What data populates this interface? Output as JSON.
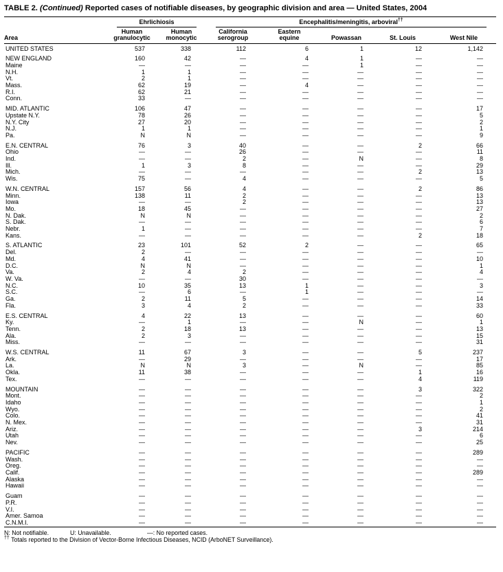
{
  "page": {
    "title_prefix": "TABLE 2.",
    "title_continued": "(Continued)",
    "title_rest": "Reported cases of notifiable diseases, by geographic division and area — United States, 2004"
  },
  "table": {
    "area_header": "Area",
    "groups": [
      {
        "label": "Ehrlichiosis",
        "sup": ""
      },
      {
        "label": "Encephalitis/meningitis, arboviral",
        "sup": "††"
      }
    ],
    "columns": [
      "Human\ngranulocytic",
      "Human\nmonocytic",
      "California\nserogroup",
      "Eastern\nequine",
      "Powassan",
      "St. Louis",
      "West Nile"
    ],
    "rows": [
      {
        "area": "UNITED STATES",
        "values": [
          "537",
          "338",
          "112",
          "6",
          "1",
          "12",
          "1,142"
        ],
        "gap": false
      },
      {
        "area": "NEW ENGLAND",
        "values": [
          "160",
          "42",
          "—",
          "4",
          "1",
          "—",
          "—"
        ],
        "gap": true
      },
      {
        "area": "Maine",
        "values": [
          "—",
          "—",
          "—",
          "—",
          "1",
          "—",
          "—"
        ],
        "gap": false
      },
      {
        "area": "N.H.",
        "values": [
          "1",
          "1",
          "—",
          "—",
          "—",
          "—",
          "—"
        ],
        "gap": false
      },
      {
        "area": "Vt.",
        "values": [
          "2",
          "1",
          "—",
          "—",
          "—",
          "—",
          "—"
        ],
        "gap": false
      },
      {
        "area": "Mass.",
        "values": [
          "62",
          "19",
          "—",
          "4",
          "—",
          "—",
          "—"
        ],
        "gap": false
      },
      {
        "area": "R.I.",
        "values": [
          "62",
          "21",
          "—",
          "—",
          "—",
          "—",
          "—"
        ],
        "gap": false
      },
      {
        "area": "Conn.",
        "values": [
          "33",
          "—",
          "—",
          "—",
          "—",
          "—",
          "—"
        ],
        "gap": false
      },
      {
        "area": "MID. ATLANTIC",
        "values": [
          "106",
          "47",
          "—",
          "—",
          "—",
          "—",
          "17"
        ],
        "gap": true
      },
      {
        "area": "Upstate N.Y.",
        "values": [
          "78",
          "26",
          "—",
          "—",
          "—",
          "—",
          "5"
        ],
        "gap": false
      },
      {
        "area": "N.Y. City",
        "values": [
          "27",
          "20",
          "—",
          "—",
          "—",
          "—",
          "2"
        ],
        "gap": false
      },
      {
        "area": "N.J.",
        "values": [
          "1",
          "1",
          "—",
          "—",
          "—",
          "—",
          "1"
        ],
        "gap": false
      },
      {
        "area": "Pa.",
        "values": [
          "N",
          "N",
          "—",
          "—",
          "—",
          "—",
          "9"
        ],
        "gap": false
      },
      {
        "area": "E.N. CENTRAL",
        "values": [
          "76",
          "3",
          "40",
          "—",
          "—",
          "2",
          "66"
        ],
        "gap": true
      },
      {
        "area": "Ohio",
        "values": [
          "—",
          "—",
          "26",
          "—",
          "—",
          "—",
          "11"
        ],
        "gap": false
      },
      {
        "area": "Ind.",
        "values": [
          "—",
          "—",
          "2",
          "—",
          "N",
          "—",
          "8"
        ],
        "gap": false
      },
      {
        "area": "Ill.",
        "values": [
          "1",
          "3",
          "8",
          "—",
          "—",
          "—",
          "29"
        ],
        "gap": false
      },
      {
        "area": "Mich.",
        "values": [
          "—",
          "—",
          "—",
          "—",
          "—",
          "2",
          "13"
        ],
        "gap": false
      },
      {
        "area": "Wis.",
        "values": [
          "75",
          "—",
          "4",
          "—",
          "—",
          "—",
          "5"
        ],
        "gap": false
      },
      {
        "area": "W.N. CENTRAL",
        "values": [
          "157",
          "56",
          "4",
          "—",
          "—",
          "2",
          "86"
        ],
        "gap": true
      },
      {
        "area": "Minn.",
        "values": [
          "138",
          "11",
          "2",
          "—",
          "—",
          "—",
          "13"
        ],
        "gap": false
      },
      {
        "area": "Iowa",
        "values": [
          "—",
          "—",
          "2",
          "—",
          "—",
          "—",
          "13"
        ],
        "gap": false
      },
      {
        "area": "Mo.",
        "values": [
          "18",
          "45",
          "—",
          "—",
          "—",
          "—",
          "27"
        ],
        "gap": false
      },
      {
        "area": "N. Dak.",
        "values": [
          "N",
          "N",
          "—",
          "—",
          "—",
          "—",
          "2"
        ],
        "gap": false
      },
      {
        "area": "S. Dak.",
        "values": [
          "—",
          "—",
          "—",
          "—",
          "—",
          "—",
          "6"
        ],
        "gap": false
      },
      {
        "area": "Nebr.",
        "values": [
          "1",
          "—",
          "—",
          "—",
          "—",
          "—",
          "7"
        ],
        "gap": false
      },
      {
        "area": "Kans.",
        "values": [
          "—",
          "—",
          "—",
          "—",
          "—",
          "2",
          "18"
        ],
        "gap": false
      },
      {
        "area": "S. ATLANTIC",
        "values": [
          "23",
          "101",
          "52",
          "2",
          "—",
          "—",
          "65"
        ],
        "gap": true
      },
      {
        "area": "Del.",
        "values": [
          "2",
          "—",
          "—",
          "—",
          "—",
          "—",
          "—"
        ],
        "gap": false
      },
      {
        "area": "Md.",
        "values": [
          "4",
          "41",
          "—",
          "—",
          "—",
          "—",
          "10"
        ],
        "gap": false
      },
      {
        "area": "D.C.",
        "values": [
          "N",
          "N",
          "—",
          "—",
          "—",
          "—",
          "1"
        ],
        "gap": false
      },
      {
        "area": "Va.",
        "values": [
          "2",
          "4",
          "2",
          "—",
          "—",
          "—",
          "4"
        ],
        "gap": false
      },
      {
        "area": "W. Va.",
        "values": [
          "—",
          "—",
          "30",
          "—",
          "—",
          "—",
          "—"
        ],
        "gap": false
      },
      {
        "area": "N.C.",
        "values": [
          "10",
          "35",
          "13",
          "1",
          "—",
          "—",
          "3"
        ],
        "gap": false
      },
      {
        "area": "S.C.",
        "values": [
          "—",
          "6",
          "—",
          "1",
          "—",
          "—",
          "—"
        ],
        "gap": false
      },
      {
        "area": "Ga.",
        "values": [
          "2",
          "11",
          "5",
          "—",
          "—",
          "—",
          "14"
        ],
        "gap": false
      },
      {
        "area": "Fla.",
        "values": [
          "3",
          "4",
          "2",
          "—",
          "—",
          "—",
          "33"
        ],
        "gap": false
      },
      {
        "area": "E.S. CENTRAL",
        "values": [
          "4",
          "22",
          "13",
          "—",
          "—",
          "—",
          "60"
        ],
        "gap": true
      },
      {
        "area": "Ky.",
        "values": [
          "—",
          "1",
          "—",
          "—",
          "N",
          "—",
          "1"
        ],
        "gap": false
      },
      {
        "area": "Tenn.",
        "values": [
          "2",
          "18",
          "13",
          "—",
          "—",
          "—",
          "13"
        ],
        "gap": false
      },
      {
        "area": "Ala.",
        "values": [
          "2",
          "3",
          "—",
          "—",
          "—",
          "—",
          "15"
        ],
        "gap": false
      },
      {
        "area": "Miss.",
        "values": [
          "—",
          "—",
          "—",
          "—",
          "—",
          "—",
          "31"
        ],
        "gap": false
      },
      {
        "area": "W.S. CENTRAL",
        "values": [
          "11",
          "67",
          "3",
          "—",
          "—",
          "5",
          "237"
        ],
        "gap": true
      },
      {
        "area": "Ark.",
        "values": [
          "—",
          "29",
          "—",
          "—",
          "—",
          "—",
          "17"
        ],
        "gap": false
      },
      {
        "area": "La.",
        "values": [
          "N",
          "N",
          "3",
          "—",
          "N",
          "—",
          "85"
        ],
        "gap": false
      },
      {
        "area": "Okla.",
        "values": [
          "11",
          "38",
          "—",
          "—",
          "—",
          "1",
          "16"
        ],
        "gap": false
      },
      {
        "area": "Tex.",
        "values": [
          "—",
          "—",
          "—",
          "—",
          "—",
          "4",
          "119"
        ],
        "gap": false
      },
      {
        "area": "MOUNTAIN",
        "values": [
          "—",
          "—",
          "—",
          "—",
          "—",
          "3",
          "322"
        ],
        "gap": true
      },
      {
        "area": "Mont.",
        "values": [
          "—",
          "—",
          "—",
          "—",
          "—",
          "—",
          "2"
        ],
        "gap": false
      },
      {
        "area": "Idaho",
        "values": [
          "—",
          "—",
          "—",
          "—",
          "—",
          "—",
          "1"
        ],
        "gap": false
      },
      {
        "area": "Wyo.",
        "values": [
          "—",
          "—",
          "—",
          "—",
          "—",
          "—",
          "2"
        ],
        "gap": false
      },
      {
        "area": "Colo.",
        "values": [
          "—",
          "—",
          "—",
          "—",
          "—",
          "—",
          "41"
        ],
        "gap": false
      },
      {
        "area": "N. Mex.",
        "values": [
          "—",
          "—",
          "—",
          "—",
          "—",
          "—",
          "31"
        ],
        "gap": false
      },
      {
        "area": "Ariz.",
        "values": [
          "—",
          "—",
          "—",
          "—",
          "—",
          "3",
          "214"
        ],
        "gap": false
      },
      {
        "area": "Utah",
        "values": [
          "—",
          "—",
          "—",
          "—",
          "—",
          "—",
          "6"
        ],
        "gap": false
      },
      {
        "area": "Nev.",
        "values": [
          "—",
          "—",
          "—",
          "—",
          "—",
          "—",
          "25"
        ],
        "gap": false
      },
      {
        "area": "PACIFIC",
        "values": [
          "—",
          "—",
          "—",
          "—",
          "—",
          "—",
          "289"
        ],
        "gap": true
      },
      {
        "area": "Wash.",
        "values": [
          "—",
          "—",
          "—",
          "—",
          "—",
          "—",
          "—"
        ],
        "gap": false
      },
      {
        "area": "Oreg.",
        "values": [
          "—",
          "—",
          "—",
          "—",
          "—",
          "—",
          "—"
        ],
        "gap": false
      },
      {
        "area": "Calif.",
        "values": [
          "—",
          "—",
          "—",
          "—",
          "—",
          "—",
          "289"
        ],
        "gap": false
      },
      {
        "area": "Alaska",
        "values": [
          "—",
          "—",
          "—",
          "—",
          "—",
          "—",
          "—"
        ],
        "gap": false
      },
      {
        "area": "Hawaii",
        "values": [
          "—",
          "—",
          "—",
          "—",
          "—",
          "—",
          "—"
        ],
        "gap": false
      },
      {
        "area": "Guam",
        "values": [
          "—",
          "—",
          "—",
          "—",
          "—",
          "—",
          "—"
        ],
        "gap": true
      },
      {
        "area": "P.R.",
        "values": [
          "—",
          "—",
          "—",
          "—",
          "—",
          "—",
          "—"
        ],
        "gap": false
      },
      {
        "area": "V.I.",
        "values": [
          "—",
          "—",
          "—",
          "—",
          "—",
          "—",
          "—"
        ],
        "gap": false
      },
      {
        "area": "Amer. Samoa",
        "values": [
          "—",
          "—",
          "—",
          "—",
          "—",
          "—",
          "—"
        ],
        "gap": false
      },
      {
        "area": "C.N.M.I.",
        "values": [
          "—",
          "—",
          "—",
          "—",
          "—",
          "—",
          "—"
        ],
        "gap": false
      }
    ]
  },
  "footnotes": {
    "line1": [
      "N: Not notifiable.",
      "U: Unavailable.",
      "—: No reported cases."
    ],
    "line2_sup": "††",
    "line2_text": "Totals reported to the Division of Vector-Borne Infectious Diseases, NCID (ArboNET Surveillance)."
  }
}
